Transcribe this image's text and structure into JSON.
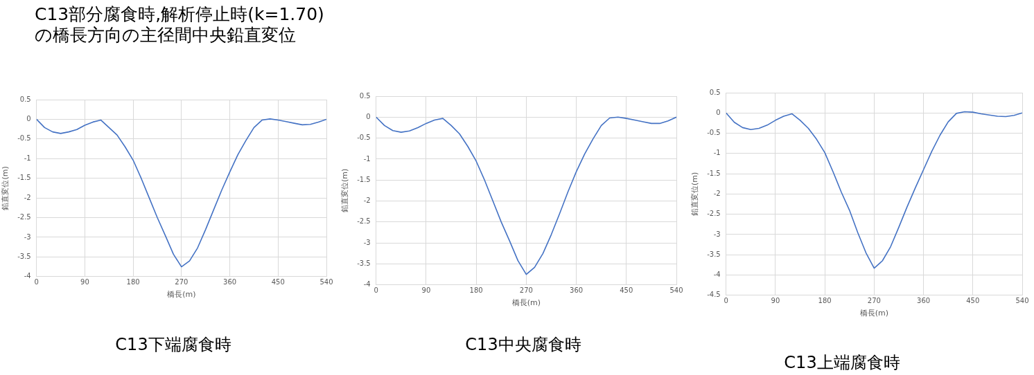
{
  "chart_data": [
    {
      "type": "line",
      "title": "C13下端腐食時",
      "annotations": [
        "C13部分腐食時,解析停止時(k=1.70)\nの橋長方向の主径間中央鉛直変位"
      ],
      "xlabel": "橋長(m)",
      "ylabel": "鉛直変位(m)",
      "color": "#4472c4",
      "grid": true,
      "x": [
        0,
        15,
        30,
        45,
        60,
        75,
        90,
        105,
        120,
        135,
        150,
        165,
        180,
        195,
        210,
        225,
        240,
        255,
        270,
        285,
        300,
        315,
        330,
        345,
        360,
        375,
        390,
        405,
        420,
        435,
        450,
        465,
        480,
        495,
        510,
        525,
        540
      ],
      "values": [
        0,
        -0.21,
        -0.32,
        -0.36,
        -0.32,
        -0.26,
        -0.15,
        -0.07,
        -0.02,
        -0.21,
        -0.4,
        -0.7,
        -1.04,
        -1.5,
        -2.0,
        -2.5,
        -2.96,
        -3.43,
        -3.75,
        -3.6,
        -3.27,
        -2.8,
        -2.3,
        -1.8,
        -1.34,
        -0.9,
        -0.54,
        -0.21,
        -0.02,
        0.01,
        -0.02,
        -0.06,
        -0.1,
        -0.14,
        -0.13,
        -0.07,
        0
      ],
      "xlim": [
        0,
        540
      ],
      "xticks": [
        0,
        90,
        180,
        270,
        360,
        450,
        540
      ],
      "ylim": [
        -4,
        0.5
      ],
      "yticks": [
        0.5,
        0,
        -0.5,
        -1,
        -1.5,
        -2,
        -2.5,
        -3,
        -3.5,
        -4
      ]
    },
    {
      "type": "line",
      "title": "C13中央腐食時",
      "xlabel": "橋長(m)",
      "ylabel": "鉛直変位(m)",
      "color": "#4472c4",
      "grid": true,
      "x": [
        0,
        15,
        30,
        45,
        60,
        75,
        90,
        105,
        120,
        135,
        150,
        165,
        180,
        195,
        210,
        225,
        240,
        255,
        270,
        285,
        300,
        315,
        330,
        345,
        360,
        375,
        390,
        405,
        420,
        435,
        450,
        465,
        480,
        495,
        510,
        525,
        540
      ],
      "values": [
        0,
        -0.2,
        -0.32,
        -0.36,
        -0.33,
        -0.25,
        -0.15,
        -0.07,
        -0.03,
        -0.2,
        -0.4,
        -0.7,
        -1.05,
        -1.5,
        -2.0,
        -2.5,
        -2.95,
        -3.42,
        -3.75,
        -3.58,
        -3.25,
        -2.8,
        -2.3,
        -1.78,
        -1.3,
        -0.88,
        -0.52,
        -0.2,
        -0.02,
        0.0,
        -0.03,
        -0.07,
        -0.11,
        -0.15,
        -0.15,
        -0.09,
        0
      ],
      "xlim": [
        0,
        540
      ],
      "xticks": [
        0,
        90,
        180,
        270,
        360,
        450,
        540
      ],
      "ylim": [
        -4,
        0.5
      ],
      "yticks": [
        0.5,
        0,
        -0.5,
        -1,
        -1.5,
        -2,
        -2.5,
        -3,
        -3.5,
        -4
      ]
    },
    {
      "type": "line",
      "title": "C13上端腐食時",
      "xlabel": "橋長(m)",
      "ylabel": "鉛直変位(m)",
      "color": "#4472c4",
      "grid": true,
      "x": [
        0,
        15,
        30,
        45,
        60,
        75,
        90,
        105,
        120,
        135,
        150,
        165,
        180,
        195,
        210,
        225,
        240,
        255,
        270,
        285,
        300,
        315,
        330,
        345,
        360,
        375,
        390,
        405,
        420,
        435,
        450,
        465,
        480,
        495,
        510,
        525,
        540
      ],
      "values": [
        0,
        -0.23,
        -0.36,
        -0.41,
        -0.38,
        -0.3,
        -0.18,
        -0.08,
        -0.02,
        -0.18,
        -0.38,
        -0.65,
        -0.98,
        -1.45,
        -1.95,
        -2.4,
        -2.95,
        -3.45,
        -3.83,
        -3.65,
        -3.3,
        -2.82,
        -2.32,
        -1.85,
        -1.4,
        -0.95,
        -0.55,
        -0.22,
        -0.01,
        0.03,
        0.02,
        -0.02,
        -0.05,
        -0.08,
        -0.09,
        -0.06,
        0
      ],
      "xlim": [
        0,
        540
      ],
      "xticks": [
        0,
        90,
        180,
        270,
        360,
        450,
        540
      ],
      "ylim": [
        -4.5,
        0.5
      ],
      "yticks": [
        0.5,
        0,
        -0.5,
        -1,
        -1.5,
        -2,
        -2.5,
        -3,
        -3.5,
        -4,
        -4.5
      ]
    }
  ]
}
